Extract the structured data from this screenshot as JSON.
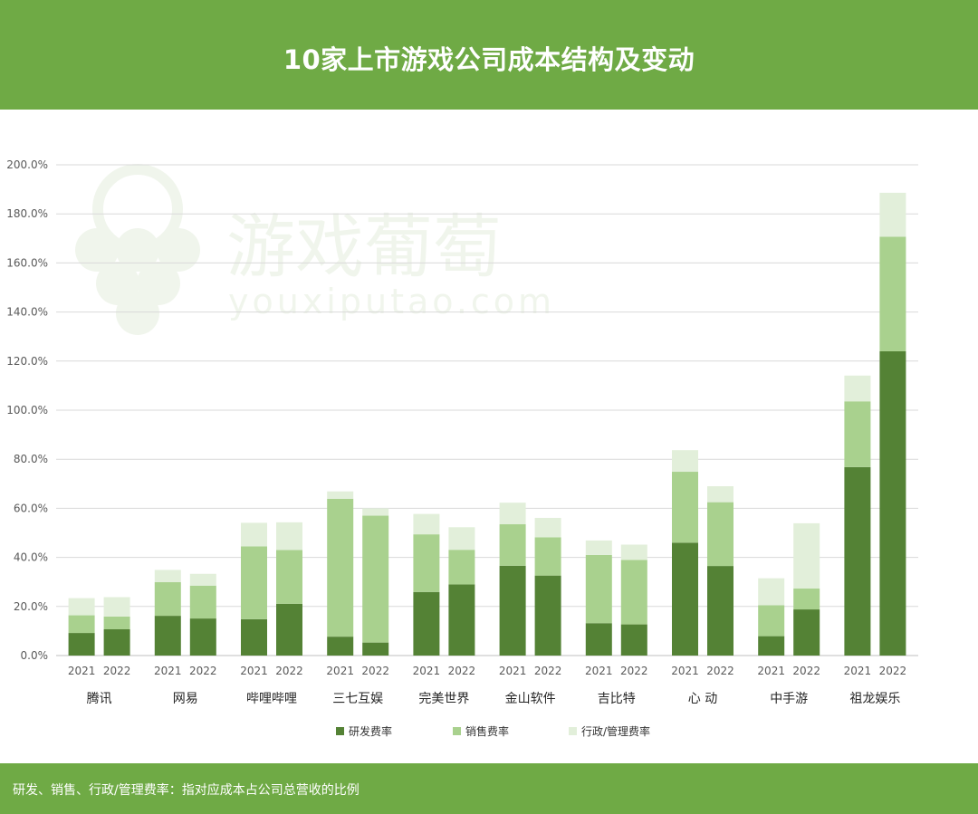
{
  "header": {
    "title": "10家上市游戏公司成本结构及变动"
  },
  "footer": {
    "note": "研发、销售、行政/管理费率：指对应成本占公司总营收的比例"
  },
  "watermark": {
    "name": "游戏葡萄",
    "url": "youxiputao.com"
  },
  "chart_data": {
    "type": "bar",
    "stacked": true,
    "title": "10家上市游戏公司成本结构及变动",
    "xlabel": "",
    "ylabel": "",
    "ylim": [
      0,
      200
    ],
    "yticks": [
      "0.0%",
      "20.0%",
      "40.0%",
      "60.0%",
      "80.0%",
      "100.0%",
      "120.0%",
      "140.0%",
      "160.0%",
      "180.0%",
      "200.0%"
    ],
    "grid": true,
    "legend_position": "bottom",
    "companies": [
      "腾讯",
      "网易",
      "哔哩哔哩",
      "三七互娱",
      "完美世界",
      "金山软件",
      "吉比特",
      "心 动",
      "中手游",
      "祖龙娱乐"
    ],
    "years": [
      "2021",
      "2022"
    ],
    "series": [
      {
        "name": "研发费率",
        "color": "#548235",
        "values": [
          [
            9.2,
            10.7
          ],
          [
            16.2,
            15.1
          ],
          [
            14.8,
            21.1
          ],
          [
            7.7,
            5.3
          ],
          [
            25.9,
            29.0
          ],
          [
            36.6,
            32.6
          ],
          [
            13.2,
            12.7
          ],
          [
            46.0,
            36.5
          ],
          [
            7.9,
            18.8
          ],
          [
            76.8,
            124.0
          ]
        ]
      },
      {
        "name": "销售费率",
        "color": "#a9d18e",
        "values": [
          [
            7.2,
            5.2
          ],
          [
            13.7,
            13.4
          ],
          [
            29.7,
            21.9
          ],
          [
            56.2,
            51.7
          ],
          [
            23.5,
            14.1
          ],
          [
            16.9,
            15.6
          ],
          [
            27.8,
            26.3
          ],
          [
            28.9,
            26.0
          ],
          [
            12.6,
            8.5
          ],
          [
            26.8,
            46.7
          ]
        ]
      },
      {
        "name": "行政/管理费率",
        "color": "#e2efda",
        "values": [
          [
            7.0,
            7.9
          ],
          [
            5.0,
            4.8
          ],
          [
            9.6,
            11.3
          ],
          [
            3.0,
            3.0
          ],
          [
            8.3,
            9.2
          ],
          [
            8.8,
            7.9
          ],
          [
            5.9,
            6.2
          ],
          [
            8.8,
            6.5
          ],
          [
            11.0,
            26.6
          ],
          [
            10.5,
            17.9
          ]
        ]
      }
    ]
  }
}
